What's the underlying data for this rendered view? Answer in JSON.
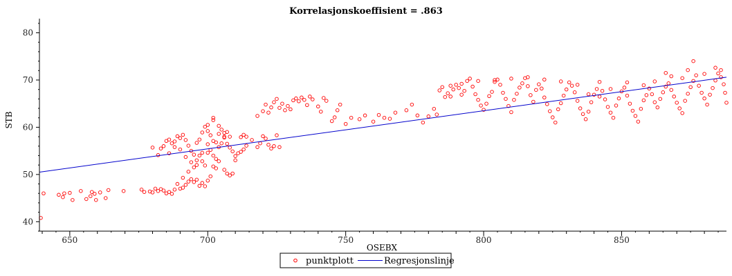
{
  "chart_data": {
    "type": "scatter",
    "title": "Korrelasjonskoeffisient = .863",
    "xlabel": "OSEBX",
    "ylabel": "STB",
    "xlim": [
      639,
      888
    ],
    "ylim": [
      38,
      83
    ],
    "x_ticks": [
      650,
      700,
      750,
      800,
      850
    ],
    "y_ticks": [
      40,
      50,
      60,
      70,
      80
    ],
    "grid": false,
    "legend": "bottom-center",
    "colors": {
      "points": "#ff0000",
      "line": "#0000cc",
      "axis": "#000000"
    },
    "series": [
      {
        "name": "punktplott",
        "kind": "points",
        "points": [
          [
            639.5,
            40.8
          ],
          [
            640.5,
            46.0
          ],
          [
            646,
            45.7
          ],
          [
            647.5,
            45.2
          ],
          [
            648,
            46.0
          ],
          [
            650,
            46.1
          ],
          [
            651,
            44.6
          ],
          [
            654,
            46.5
          ],
          [
            656,
            44.8
          ],
          [
            657.5,
            45.4
          ],
          [
            658,
            46.3
          ],
          [
            659,
            45.9
          ],
          [
            659.5,
            44.6
          ],
          [
            661,
            46.2
          ],
          [
            663,
            45.0
          ],
          [
            664,
            46.7
          ],
          [
            669.5,
            46.5
          ],
          [
            676,
            46.8
          ],
          [
            677,
            46.3
          ],
          [
            679,
            46.4
          ],
          [
            680,
            46.2
          ],
          [
            681,
            47.0
          ],
          [
            682,
            46.5
          ],
          [
            683,
            46.9
          ],
          [
            684,
            46.6
          ],
          [
            685,
            46.0
          ],
          [
            686,
            46.3
          ],
          [
            687,
            45.9
          ],
          [
            688,
            46.8
          ],
          [
            690,
            47.0
          ],
          [
            691,
            47.2
          ],
          [
            692,
            47.8
          ],
          [
            693,
            48.5
          ],
          [
            694,
            49.0
          ],
          [
            695,
            48.4
          ],
          [
            696,
            48.9
          ],
          [
            697,
            47.6
          ],
          [
            698,
            48.2
          ],
          [
            699,
            47.5
          ],
          [
            700,
            48.7
          ],
          [
            701,
            49.6
          ],
          [
            702,
            51.7
          ],
          [
            703,
            51.3
          ],
          [
            704,
            52.8
          ],
          [
            706,
            51.0
          ],
          [
            707,
            50.2
          ],
          [
            708,
            49.8
          ],
          [
            709,
            50.2
          ],
          [
            710,
            53.0
          ],
          [
            711,
            54.5
          ],
          [
            712,
            54.8
          ],
          [
            713,
            55.3
          ],
          [
            714,
            56.1
          ],
          [
            680,
            55.7
          ],
          [
            682,
            54.1
          ],
          [
            683,
            55.5
          ],
          [
            684,
            56.0
          ],
          [
            685,
            57.1
          ],
          [
            686,
            57.4
          ],
          [
            687,
            56.6
          ],
          [
            688,
            57.0
          ],
          [
            689,
            58.1
          ],
          [
            690,
            57.7
          ],
          [
            691,
            58.4
          ],
          [
            692,
            57.3
          ],
          [
            693,
            56.1
          ],
          [
            694,
            55.0
          ],
          [
            695,
            54.2
          ],
          [
            696,
            56.7
          ],
          [
            697,
            57.4
          ],
          [
            698,
            58.9
          ],
          [
            699,
            60.1
          ],
          [
            700,
            59.2
          ],
          [
            701,
            58.3
          ],
          [
            702,
            57.1
          ],
          [
            703,
            56.8
          ],
          [
            704,
            58.6
          ],
          [
            705,
            59.5
          ],
          [
            706,
            57.8
          ],
          [
            707,
            56.5
          ],
          [
            708,
            55.7
          ],
          [
            709,
            54.9
          ],
          [
            710,
            53.9
          ],
          [
            690,
            55.3
          ],
          [
            692,
            53.7
          ],
          [
            694,
            52.6
          ],
          [
            695,
            51.5
          ],
          [
            696,
            53.0
          ],
          [
            697,
            54.0
          ],
          [
            698,
            52.8
          ],
          [
            699,
            51.9
          ],
          [
            700,
            54.6
          ],
          [
            701,
            55.2
          ],
          [
            702,
            54.0
          ],
          [
            703,
            53.3
          ],
          [
            704,
            55.8
          ],
          [
            705,
            56.6
          ],
          [
            706,
            58.0
          ],
          [
            707,
            59.0
          ],
          [
            702,
            62.0
          ],
          [
            718,
            55.8
          ],
          [
            719,
            56.6
          ],
          [
            720,
            58.1
          ],
          [
            721,
            57.6
          ],
          [
            722,
            56.3
          ],
          [
            723,
            55.5
          ],
          [
            724,
            56.0
          ],
          [
            725,
            58.3
          ],
          [
            726,
            55.8
          ],
          [
            718,
            62.4
          ],
          [
            720,
            63.4
          ],
          [
            721,
            64.8
          ],
          [
            722,
            63.1
          ],
          [
            723,
            64.2
          ],
          [
            724,
            65.3
          ],
          [
            725,
            66.0
          ],
          [
            726,
            64.1
          ],
          [
            727,
            65.0
          ],
          [
            728,
            63.6
          ],
          [
            729,
            64.5
          ],
          [
            730,
            63.8
          ],
          [
            731,
            65.7
          ],
          [
            732,
            66.1
          ],
          [
            733,
            65.5
          ],
          [
            734,
            66.3
          ],
          [
            735,
            65.8
          ],
          [
            736,
            64.7
          ],
          [
            737,
            66.5
          ],
          [
            738,
            65.9
          ],
          [
            740,
            64.4
          ],
          [
            741,
            63.3
          ],
          [
            742,
            66.2
          ],
          [
            743,
            65.6
          ],
          [
            745,
            61.3
          ],
          [
            746,
            62.1
          ],
          [
            747,
            63.6
          ],
          [
            748,
            64.8
          ],
          [
            750,
            60.7
          ],
          [
            752,
            62.0
          ],
          [
            755,
            61.7
          ],
          [
            757,
            62.5
          ],
          [
            760,
            61.2
          ],
          [
            762,
            62.6
          ],
          [
            764,
            62.0
          ],
          [
            766,
            61.8
          ],
          [
            768,
            63.1
          ],
          [
            772,
            63.6
          ],
          [
            774,
            64.8
          ],
          [
            776,
            62.5
          ],
          [
            778,
            61.0
          ],
          [
            780,
            62.3
          ],
          [
            782,
            63.9
          ],
          [
            783,
            62.7
          ],
          [
            784,
            67.8
          ],
          [
            785,
            68.5
          ],
          [
            786,
            66.4
          ],
          [
            787,
            67.2
          ],
          [
            788,
            66.5
          ],
          [
            789,
            68.0
          ],
          [
            790,
            69.0
          ],
          [
            791,
            68.3
          ],
          [
            792,
            66.9
          ],
          [
            793,
            67.7
          ],
          [
            794,
            69.8
          ],
          [
            795,
            70.3
          ],
          [
            796,
            68.6
          ],
          [
            797,
            67.0
          ],
          [
            798,
            65.8
          ],
          [
            799,
            64.6
          ],
          [
            800,
            63.7
          ],
          [
            801,
            65.0
          ],
          [
            802,
            66.6
          ],
          [
            803,
            67.5
          ],
          [
            804,
            69.6
          ],
          [
            805,
            70.1
          ],
          [
            806,
            69.0
          ],
          [
            807,
            67.3
          ],
          [
            808,
            66.0
          ],
          [
            809,
            64.5
          ],
          [
            810,
            63.2
          ],
          [
            811,
            65.8
          ],
          [
            812,
            67.1
          ],
          [
            813,
            68.4
          ],
          [
            814,
            69.3
          ],
          [
            815,
            70.4
          ],
          [
            816,
            68.7
          ],
          [
            817,
            66.8
          ],
          [
            818,
            65.4
          ],
          [
            819,
            67.9
          ],
          [
            820,
            69.1
          ],
          [
            821,
            68.2
          ],
          [
            822,
            66.3
          ],
          [
            823,
            64.9
          ],
          [
            824,
            63.4
          ],
          [
            825,
            62.1
          ],
          [
            826,
            61.0
          ],
          [
            827,
            63.8
          ],
          [
            828,
            65.1
          ],
          [
            829,
            66.7
          ],
          [
            830,
            68.0
          ],
          [
            831,
            69.5
          ],
          [
            832,
            68.8
          ],
          [
            833,
            67.4
          ],
          [
            834,
            65.6
          ],
          [
            835,
            64.0
          ],
          [
            836,
            62.8
          ],
          [
            837,
            61.7
          ],
          [
            838,
            63.3
          ],
          [
            839,
            65.3
          ],
          [
            840,
            66.9
          ],
          [
            841,
            68.1
          ],
          [
            842,
            69.6
          ],
          [
            843,
            67.7
          ],
          [
            844,
            65.9
          ],
          [
            845,
            64.3
          ],
          [
            846,
            63.1
          ],
          [
            847,
            62.0
          ],
          [
            848,
            64.6
          ],
          [
            849,
            66.1
          ],
          [
            850,
            67.6
          ],
          [
            851,
            68.4
          ],
          [
            852,
            66.7
          ],
          [
            853,
            65.0
          ],
          [
            854,
            63.5
          ],
          [
            855,
            62.4
          ],
          [
            856,
            61.2
          ],
          [
            857,
            63.9
          ],
          [
            858,
            65.7
          ],
          [
            859,
            66.8
          ],
          [
            860,
            68.2
          ],
          [
            861,
            67.0
          ],
          [
            862,
            65.3
          ],
          [
            863,
            64.2
          ],
          [
            864,
            66.0
          ],
          [
            865,
            67.4
          ],
          [
            866,
            68.6
          ],
          [
            867,
            69.3
          ],
          [
            868,
            67.9
          ],
          [
            869,
            66.5
          ],
          [
            870,
            65.2
          ],
          [
            871,
            64.0
          ],
          [
            872,
            63.0
          ],
          [
            873,
            65.6
          ],
          [
            874,
            67.1
          ],
          [
            875,
            68.5
          ],
          [
            876,
            69.8
          ],
          [
            877,
            71.0
          ],
          [
            878,
            68.8
          ],
          [
            879,
            67.3
          ],
          [
            880,
            66.1
          ],
          [
            881,
            64.8
          ],
          [
            882,
            66.9
          ],
          [
            883,
            68.3
          ],
          [
            884,
            69.9
          ],
          [
            885,
            71.4
          ],
          [
            886,
            70.6
          ],
          [
            887,
            69.1
          ],
          [
            887.5,
            67.3
          ],
          [
            888,
            65.2
          ],
          [
            876,
            74.0
          ],
          [
            874,
            72.1
          ],
          [
            872,
            70.4
          ],
          [
            868,
            70.8
          ],
          [
            862,
            69.7
          ],
          [
            858,
            68.9
          ],
          [
            884,
            72.6
          ],
          [
            886,
            72.1
          ],
          [
            880,
            71.3
          ],
          [
            866,
            71.5
          ],
          [
            852,
            69.5
          ],
          [
            846,
            68.1
          ],
          [
            842,
            66.5
          ],
          [
            838,
            67.0
          ],
          [
            834,
            69.0
          ],
          [
            828,
            69.7
          ],
          [
            822,
            70.1
          ],
          [
            816,
            70.6
          ],
          [
            810,
            70.3
          ],
          [
            804,
            70.0
          ],
          [
            798,
            69.8
          ],
          [
            792,
            69.2
          ],
          [
            788,
            68.8
          ],
          [
            706,
            58.8
          ],
          [
            700,
            56.4
          ],
          [
            698,
            54.6
          ],
          [
            696,
            52.0
          ],
          [
            693,
            50.6
          ],
          [
            691,
            49.3
          ],
          [
            689,
            48.0
          ],
          [
            712,
            57.9
          ],
          [
            713,
            58.4
          ],
          [
            714,
            58.0
          ],
          [
            716,
            57.3
          ],
          [
            704,
            60.3
          ],
          [
            708,
            58.0
          ],
          [
            686,
            54.5
          ],
          [
            688,
            55.8
          ],
          [
            700,
            60.5
          ],
          [
            702,
            61.5
          ]
        ]
      },
      {
        "name": "Regresjonslinje",
        "kind": "line",
        "points": [
          [
            639,
            50.5
          ],
          [
            888,
            70.6
          ]
        ]
      }
    ]
  }
}
